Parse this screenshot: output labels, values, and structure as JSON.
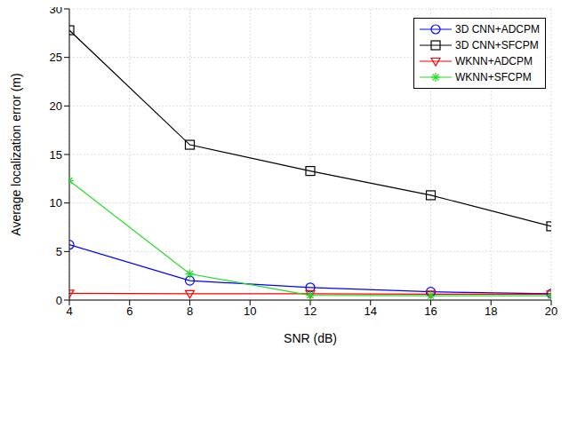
{
  "chart_data": {
    "type": "line",
    "x_label": "SNR (dB)",
    "y_label": "Average localization error (m)",
    "x": [
      4,
      8,
      12,
      16,
      20
    ],
    "xlim": [
      4,
      20
    ],
    "xticks": [
      4,
      6,
      8,
      10,
      12,
      14,
      16,
      18,
      20
    ],
    "ylim": [
      0,
      30
    ],
    "yticks": [
      0,
      5,
      10,
      15,
      20,
      25,
      30
    ],
    "grid": true,
    "legend": "upper right",
    "series": [
      {
        "name": "3D CNN+ADCPM",
        "color": "#0000ff",
        "marker": "circle",
        "values": [
          5.7,
          2.0,
          1.3,
          0.85,
          0.65
        ]
      },
      {
        "name": "3D CNN+SFCPM",
        "color": "#000000",
        "marker": "square",
        "values": [
          27.8,
          16.0,
          13.3,
          10.8,
          7.6
        ]
      },
      {
        "name": "WKNN+ADCPM",
        "color": "#ff0000",
        "marker": "triangle-down",
        "values": [
          0.7,
          0.65,
          0.65,
          0.6,
          0.6
        ]
      },
      {
        "name": "WKNN+SFCPM",
        "color": "#22dd22",
        "marker": "star",
        "values": [
          12.3,
          2.7,
          0.5,
          0.45,
          0.45
        ]
      }
    ]
  }
}
